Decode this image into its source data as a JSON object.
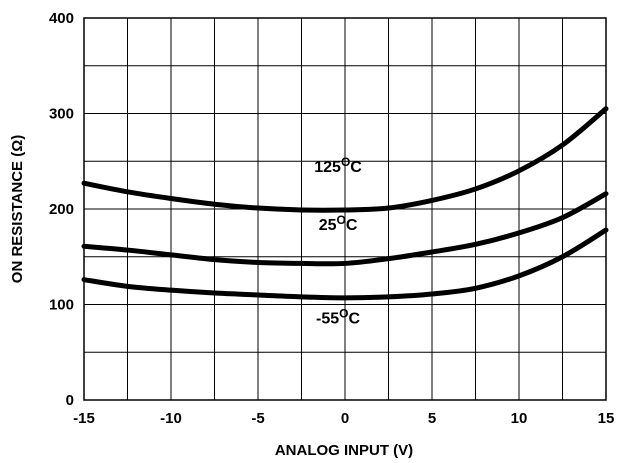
{
  "chart_data": {
    "type": "line",
    "xlabel": "ANALOG INPUT (V)",
    "ylabel": "ON RESISTANCE (Ω)",
    "xlim": [
      -15,
      15
    ],
    "ylim": [
      0,
      400
    ],
    "x_ticks": [
      -15,
      -10,
      -5,
      0,
      5,
      10,
      15
    ],
    "y_ticks": [
      0,
      100,
      200,
      300,
      400
    ],
    "x_tick_labels": [
      "-15",
      "-10",
      "-5",
      "0",
      "5",
      "10",
      "15"
    ],
    "y_tick_labels": [
      "0",
      "100",
      "200",
      "300",
      "400"
    ],
    "grid": true,
    "series": [
      {
        "name": "125°C",
        "label_base": "125",
        "label_sup": "O",
        "label_unit": "C",
        "x": [
          -15,
          -12.5,
          -10,
          -7.5,
          -5,
          -2.5,
          0,
          2.5,
          5,
          7.5,
          10,
          12.5,
          15
        ],
        "values": [
          227,
          218,
          211,
          205,
          201,
          199,
          199,
          201,
          209,
          221,
          240,
          267,
          305
        ]
      },
      {
        "name": "25°C",
        "label_base": "25",
        "label_sup": "O",
        "label_unit": "C",
        "x": [
          -15,
          -12.5,
          -10,
          -7.5,
          -5,
          -2.5,
          0,
          2.5,
          5,
          7.5,
          10,
          12.5,
          15
        ],
        "values": [
          161,
          157,
          152,
          147,
          144,
          143,
          143,
          148,
          155,
          163,
          175,
          191,
          216
        ]
      },
      {
        "name": "-55°C",
        "label_base": "-55",
        "label_sup": "O",
        "label_unit": "C",
        "x": [
          -15,
          -12.5,
          -10,
          -7.5,
          -5,
          -2.5,
          0,
          2.5,
          5,
          7.5,
          10,
          12.5,
          15
        ],
        "values": [
          126,
          119,
          115,
          112,
          110,
          108,
          107,
          108,
          111,
          117,
          130,
          150,
          178
        ]
      }
    ]
  }
}
